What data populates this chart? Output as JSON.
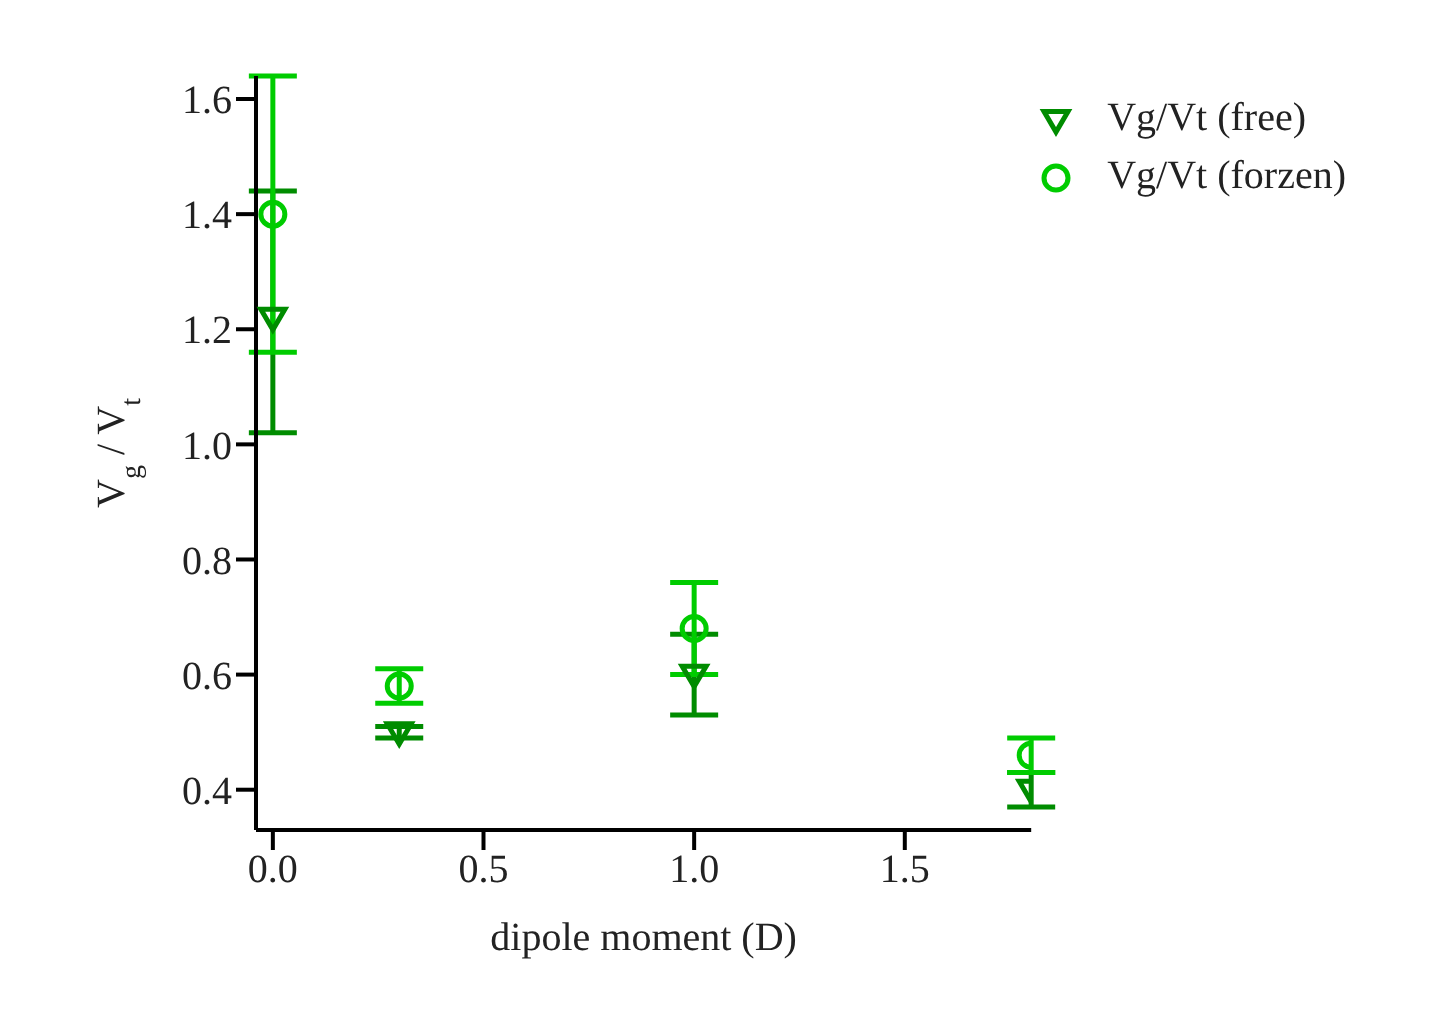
{
  "chart_data": {
    "type": "scatter",
    "xlabel": "dipole moment (D)",
    "ylabel": "V$_{g}$ / V$_{t}$",
    "x": [
      0.0,
      0.3,
      1.0,
      1.8
    ],
    "series": [
      {
        "name": "Vg/Vt (free)",
        "color": "#008c00",
        "marker": "triangle",
        "values": [
          1.22,
          0.5,
          0.6,
          0.4
        ],
        "errors": [
          [
            1.02,
            1.44
          ],
          [
            0.49,
            0.51
          ],
          [
            0.53,
            0.67
          ],
          [
            0.37,
            0.43
          ]
        ]
      },
      {
        "name": "Vg/Vt (forzen)",
        "color": "#00cc00",
        "marker": "circle",
        "values": [
          1.4,
          0.58,
          0.68,
          0.46
        ],
        "errors": [
          [
            1.16,
            1.64
          ],
          [
            0.55,
            0.61
          ],
          [
            0.6,
            0.76
          ],
          [
            0.43,
            0.49
          ]
        ]
      }
    ],
    "xlim": [
      -0.04,
      1.8
    ],
    "xticks": [
      {
        "value": 0,
        "label": "0.0"
      },
      0.5,
      {
        "value": 1,
        "label": "1.0"
      },
      1.5
    ],
    "ylim": [
      0.33,
      1.64
    ],
    "yticks": [
      0.4,
      0.6,
      0.8,
      {
        "value": 1,
        "label": "1.0"
      },
      1.2,
      1.4,
      1.6
    ],
    "grid": false,
    "legend": "top right"
  }
}
